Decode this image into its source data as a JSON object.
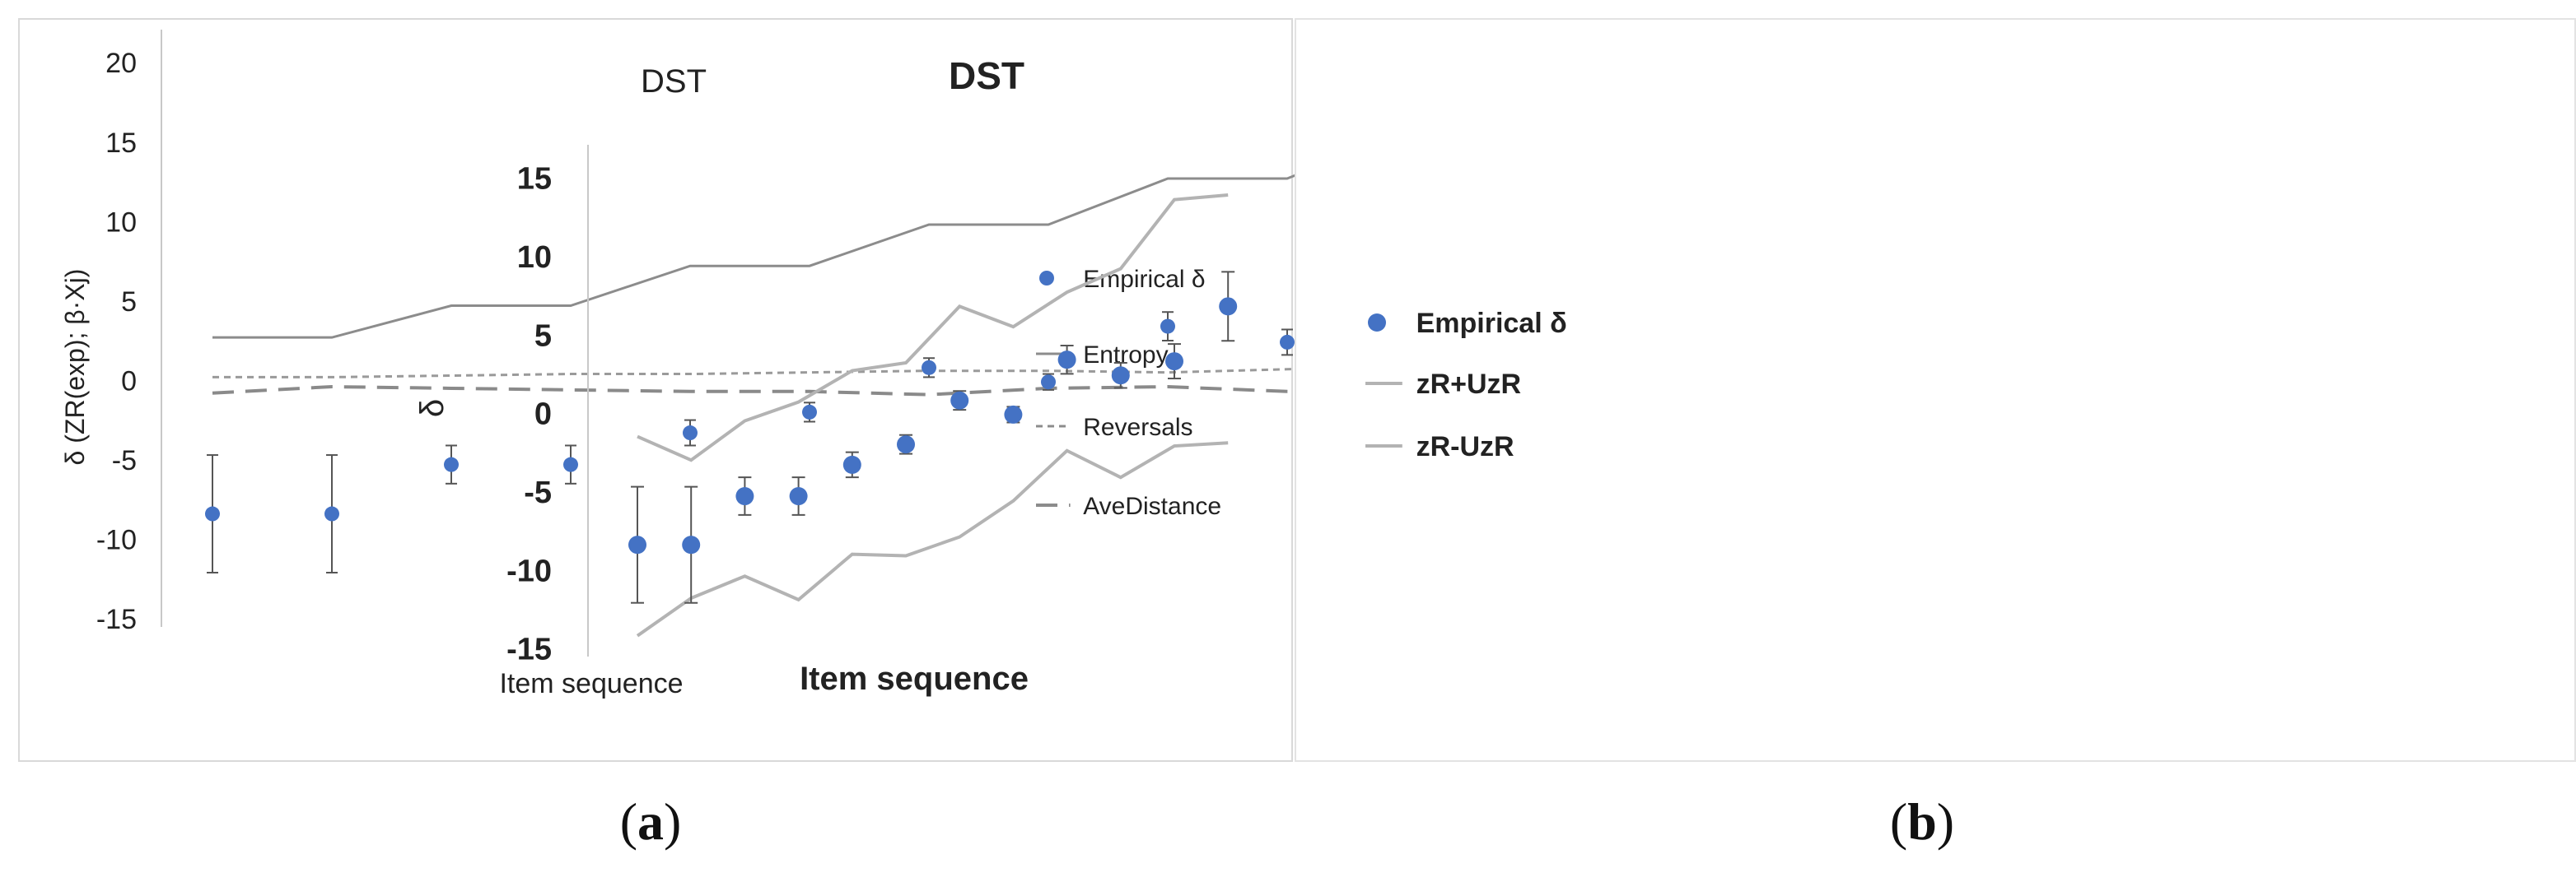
{
  "figure": {
    "label_a": "a",
    "label_b": "b"
  },
  "colors": {
    "point": "#4472c4",
    "line": "#8c8c8c",
    "error_bar": "#555555",
    "text": "#222222"
  },
  "chart_data": [
    {
      "type": "scatter",
      "title": "DST",
      "xlabel": "Item sequence",
      "ylabel": "δ (ZR(exp); β·Xj)",
      "ylim": [
        -15,
        20
      ],
      "yticks": [
        -15,
        -10,
        -5,
        0,
        5,
        10,
        15,
        20
      ],
      "x": [
        1,
        2,
        3,
        4,
        5,
        6,
        7,
        8,
        9,
        10,
        11,
        12
      ],
      "legend_position": "right",
      "series": [
        {
          "name": "Empirical δ",
          "kind": "points",
          "values": [
            -8.4,
            -8.4,
            -5.3,
            -5.3,
            -3.3,
            -2.0,
            0.8,
            -0.1,
            3.4,
            2.4,
            3.3,
            6.8
          ],
          "error": [
            3.7,
            3.7,
            1.2,
            1.2,
            0.8,
            0.6,
            0.6,
            0.5,
            0.9,
            0.8,
            1.1,
            2.2
          ]
        },
        {
          "name": "Entropy",
          "kind": "solid",
          "values": [
            2.7,
            2.7,
            4.7,
            4.7,
            7.2,
            7.2,
            9.8,
            9.8,
            12.7,
            12.7,
            15.7,
            15.7
          ]
        },
        {
          "name": "Reversals",
          "kind": "dotted",
          "values": [
            0.2,
            0.2,
            0.3,
            0.4,
            0.4,
            0.5,
            0.6,
            0.6,
            0.5,
            0.7,
            0.9,
            1.1
          ]
        },
        {
          "name": "AveDistance",
          "kind": "dashed",
          "values": [
            -0.8,
            -0.4,
            -0.5,
            -0.6,
            -0.7,
            -0.7,
            -0.9,
            -0.5,
            -0.4,
            -0.7,
            -0.9,
            -0.9
          ]
        }
      ]
    },
    {
      "type": "scatter",
      "title": "DST",
      "xlabel": "Item sequence",
      "ylabel": "δ",
      "ylim": [
        -15,
        15
      ],
      "yticks": [
        -15,
        -10,
        -5,
        0,
        5,
        10,
        15
      ],
      "x": [
        1,
        2,
        3,
        4,
        5,
        6,
        7,
        8,
        9,
        10,
        11,
        12
      ],
      "legend_position": "right",
      "series": [
        {
          "name": "Empirical δ",
          "kind": "points",
          "values": [
            -8.4,
            -8.4,
            -5.3,
            -5.3,
            -3.3,
            -2.0,
            0.8,
            -0.1,
            3.4,
            2.4,
            3.3,
            6.8
          ],
          "error": [
            3.7,
            3.7,
            1.2,
            1.2,
            0.8,
            0.6,
            0.6,
            0.5,
            0.9,
            0.8,
            1.1,
            2.2
          ]
        },
        {
          "name": "zR+UzR",
          "kind": "solid",
          "values": [
            -1.5,
            -3.0,
            -0.5,
            0.7,
            2.7,
            3.2,
            6.8,
            5.5,
            7.7,
            9.2,
            13.6,
            13.9
          ]
        },
        {
          "name": "zR-UzR",
          "kind": "solid",
          "values": [
            -14.2,
            -11.8,
            -10.4,
            -11.9,
            -9.0,
            -9.1,
            -7.9,
            -5.6,
            -2.4,
            -4.1,
            -2.1,
            -1.9
          ]
        }
      ]
    }
  ]
}
